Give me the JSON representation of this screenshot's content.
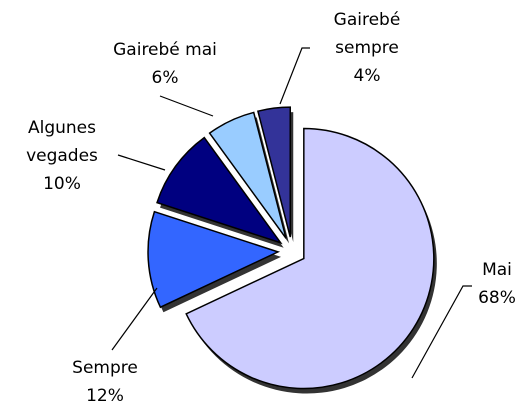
{
  "chart_data": {
    "type": "pie",
    "categories": [
      "Mai",
      "Sempre",
      "Algunes vegades",
      "Gairebé mai",
      "Gairebé sempre"
    ],
    "values": [
      68,
      12,
      10,
      6,
      4
    ],
    "value_labels": [
      "68%",
      "12%",
      "10%",
      "6%",
      "4%"
    ],
    "colors": [
      "#ccccff",
      "#3366ff",
      "#000080",
      "#99ccff",
      "#333399"
    ]
  }
}
